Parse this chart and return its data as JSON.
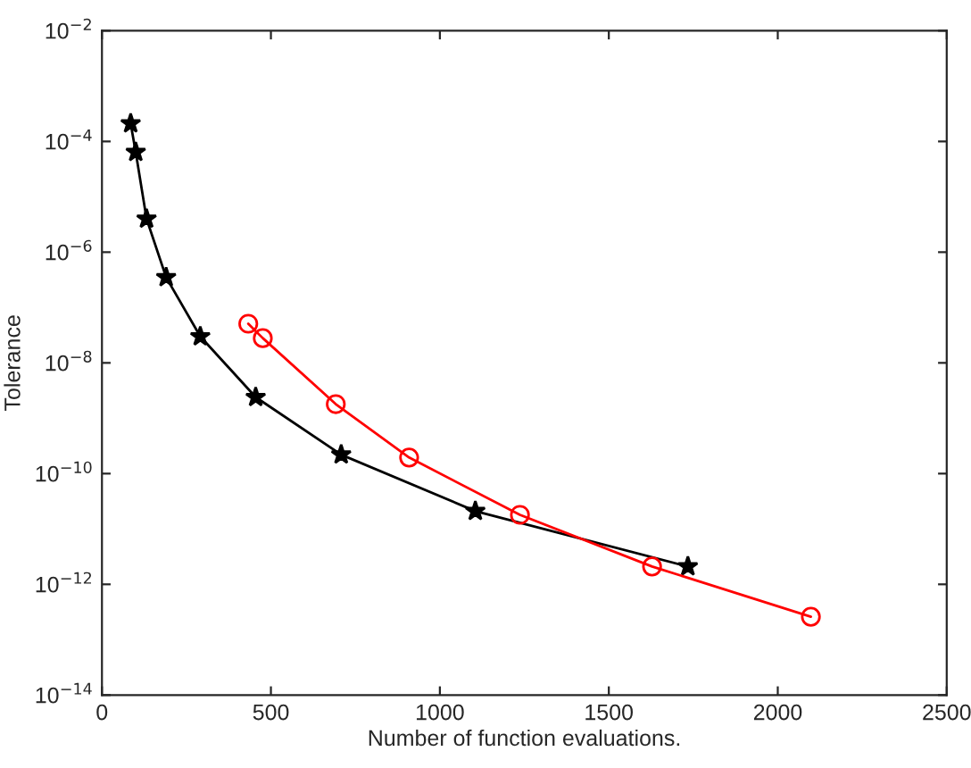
{
  "chart_data": {
    "type": "line",
    "xlabel": "Number of function evaluations.",
    "ylabel": "Tolerance",
    "log": "y",
    "grid": false,
    "xlim": [
      0,
      2500
    ],
    "xticks": [
      0,
      500,
      1000,
      1500,
      2000,
      2500
    ],
    "ylim": [
      1e-14,
      0.01
    ],
    "yticks": [
      {
        "value": 1e-14,
        "label": "10$^{−14}$"
      },
      {
        "value": 1e-12,
        "label": "10$^{−12}$"
      },
      {
        "value": 1e-10,
        "label": "10$^{−10}$"
      },
      {
        "value": 1e-08,
        "label": "10$^{−8}$"
      },
      {
        "value": 1e-06,
        "label": "10$^{−6}$"
      },
      {
        "value": 0.0001,
        "label": "10$^{−4}$"
      },
      {
        "value": 0.01,
        "label": "10$^{−2}$"
      }
    ],
    "series": [
      {
        "color": "#000000",
        "marker": "star",
        "x": [
          85,
          100,
          132,
          190,
          291,
          455,
          708,
          1105,
          1734
        ],
        "values": [
          0.00021,
          6.4e-05,
          4e-06,
          3.5e-07,
          3e-08,
          2.4e-09,
          2.2e-10,
          2.1e-11,
          2.1e-12
        ]
      },
      {
        "color": "#ff0000",
        "marker": "circle",
        "x": [
          433,
          476,
          692,
          909,
          1237,
          1628,
          2098
        ],
        "values": [
          5.1e-08,
          2.8e-08,
          1.8e-09,
          1.95e-10,
          1.8e-11,
          2.1e-12,
          2.6e-13
        ]
      }
    ]
  }
}
